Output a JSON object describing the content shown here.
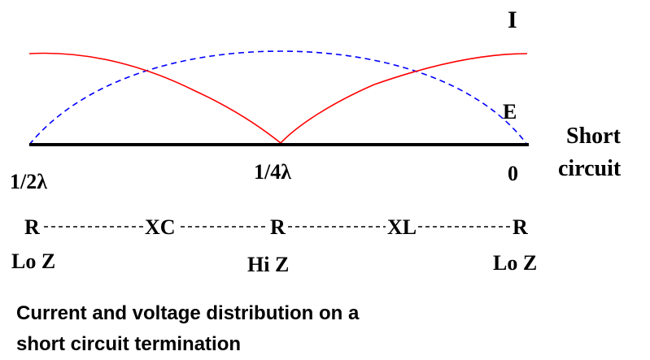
{
  "curves": {
    "current": {
      "label": "I",
      "color": "#ff0000",
      "style": "solid"
    },
    "voltage": {
      "label": "E",
      "color": "#0000ff",
      "style": "dashed"
    }
  },
  "line_color": "#000000",
  "positions": {
    "half_wave": "1/2λ",
    "quarter_wave": "1/4λ",
    "zero": "0"
  },
  "termination": {
    "line1": "Short",
    "line2": "circuit"
  },
  "impedance_row": {
    "left": "R",
    "left_reactance": "XC",
    "center": "R",
    "right_reactance": "XL",
    "right": "R"
  },
  "impedance_labels": {
    "left": "Lo Z",
    "center": "Hi Z",
    "right": "Lo Z"
  },
  "caption": {
    "line1": "Current and voltage distribution on a",
    "line2": "short circuit termination"
  }
}
